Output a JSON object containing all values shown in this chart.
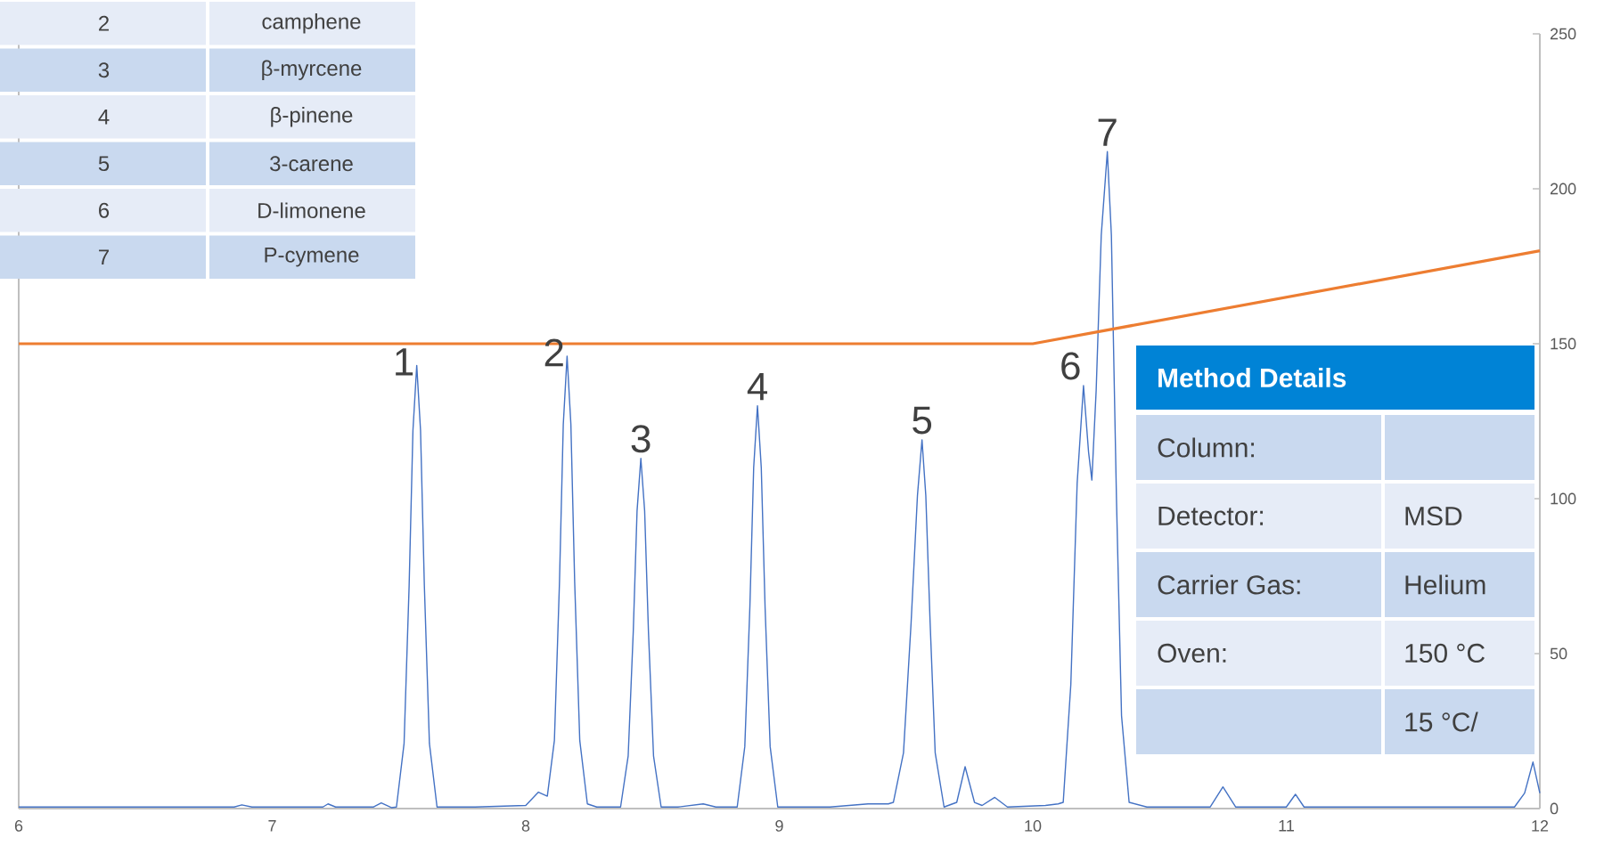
{
  "chart_data": {
    "type": "line",
    "xlim": [
      6,
      12
    ],
    "ylim": [
      0,
      250
    ],
    "xticks": [
      6,
      7,
      8,
      9,
      10,
      11,
      12
    ],
    "yticks": [
      0,
      50,
      100,
      150,
      200,
      250
    ],
    "series": [
      {
        "color": "#4472c4",
        "x": [
          6.0,
          6.85,
          6.88,
          6.92,
          7.2,
          7.22,
          7.25,
          7.4,
          7.43,
          7.47,
          7.49,
          7.52,
          7.54,
          7.555,
          7.57,
          7.585,
          7.6,
          7.62,
          7.65,
          7.8,
          8.0,
          8.05,
          8.085,
          8.113,
          8.133,
          8.148,
          8.163,
          8.178,
          8.193,
          8.213,
          8.243,
          8.28,
          8.374,
          8.404,
          8.424,
          8.439,
          8.454,
          8.469,
          8.484,
          8.504,
          8.534,
          8.6,
          8.7,
          8.75,
          8.834,
          8.864,
          8.884,
          8.899,
          8.914,
          8.929,
          8.944,
          8.964,
          8.994,
          9.2,
          9.35,
          9.43,
          9.45,
          9.49,
          9.52,
          9.545,
          9.563,
          9.578,
          9.595,
          9.615,
          9.65,
          9.7,
          9.733,
          9.77,
          9.8,
          9.85,
          9.9,
          10.05,
          10.1,
          10.12,
          10.15,
          10.175,
          10.2,
          10.22,
          10.233,
          10.25,
          10.27,
          10.294,
          10.31,
          10.33,
          10.35,
          10.38,
          10.45,
          10.7,
          10.75,
          10.8,
          11.0,
          11.036,
          11.07,
          11.5,
          11.9,
          11.94,
          11.973,
          12.0
        ],
        "values": [
          0.5,
          0.5,
          1.2,
          0.5,
          0.5,
          1.5,
          0.5,
          0.5,
          1.8,
          0.3,
          0.5,
          21,
          72,
          122,
          143,
          122,
          72,
          21,
          0.5,
          0.5,
          1,
          5.3,
          4,
          22,
          73,
          124,
          146,
          124,
          73,
          22,
          1.5,
          0.5,
          0.5,
          17,
          57,
          96,
          113,
          96,
          57,
          17,
          0.5,
          0.5,
          1.5,
          0.5,
          0.5,
          20,
          65,
          110,
          130,
          110,
          65,
          20,
          0.5,
          0.5,
          1.5,
          1.5,
          2,
          18,
          60,
          101,
          119,
          101,
          60,
          18,
          0.5,
          2,
          13.5,
          2,
          1,
          3.6,
          0.5,
          1,
          1.5,
          2,
          40,
          105,
          136.5,
          115,
          106,
          135,
          185,
          212,
          185,
          100,
          30,
          2,
          0.5,
          0.5,
          7,
          0.5,
          0.5,
          4.6,
          0.5,
          0.5,
          0.5,
          5,
          15,
          5
        ]
      },
      {
        "color": "#ed7d31",
        "x": [
          6,
          10,
          12
        ],
        "values": [
          150,
          150,
          180
        ]
      }
    ],
    "annotations": [
      {
        "text": "1",
        "x": 7.57,
        "y": 143
      },
      {
        "text": "2",
        "x": 8.163,
        "y": 146
      },
      {
        "text": "3",
        "x": 8.454,
        "y": 113
      },
      {
        "text": "4",
        "x": 8.914,
        "y": 130
      },
      {
        "text": "5",
        "x": 9.563,
        "y": 119
      },
      {
        "text": "6",
        "x": 10.2,
        "y": 136.5
      },
      {
        "text": "7",
        "x": 10.294,
        "y": 212
      },
      "2",
      "camphene",
      "3",
      "β-myrcene",
      "4",
      "β-pinene",
      "5",
      "3-carene",
      "6",
      "D-limonene",
      "7",
      "P-cymene",
      "Method Details",
      "Column:",
      "Detector:",
      "MSD",
      "Carrier Gas:",
      "Helium",
      "Oven:",
      "150 °C",
      "15 °C/"
    ]
  }
}
